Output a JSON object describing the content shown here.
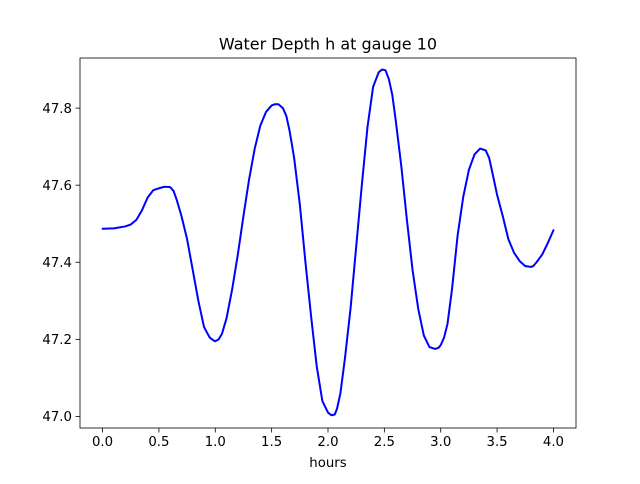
{
  "chart_data": {
    "type": "line",
    "title": "Water Depth h at gauge 10",
    "xlabel": "hours",
    "ylabel": "",
    "xlim": [
      -0.2,
      4.2
    ],
    "ylim": [
      46.97,
      47.93
    ],
    "xticks": [
      0.0,
      0.5,
      1.0,
      1.5,
      2.0,
      2.5,
      3.0,
      3.5,
      4.0
    ],
    "xtick_labels": [
      "0.0",
      "0.5",
      "1.0",
      "1.5",
      "2.0",
      "2.5",
      "3.0",
      "3.5",
      "4.0"
    ],
    "yticks": [
      47.0,
      47.2,
      47.4,
      47.6,
      47.8
    ],
    "ytick_labels": [
      "47.0",
      "47.2",
      "47.4",
      "47.6",
      "47.8"
    ],
    "grid": false,
    "series": [
      {
        "color": "#0000ff",
        "x": [
          0.0,
          0.1,
          0.2,
          0.25,
          0.3,
          0.35,
          0.4,
          0.45,
          0.5,
          0.55,
          0.6,
          0.63,
          0.66,
          0.7,
          0.75,
          0.8,
          0.85,
          0.9,
          0.95,
          0.98,
          1.0,
          1.03,
          1.06,
          1.1,
          1.15,
          1.2,
          1.25,
          1.3,
          1.35,
          1.4,
          1.45,
          1.5,
          1.53,
          1.56,
          1.6,
          1.63,
          1.66,
          1.7,
          1.75,
          1.8,
          1.85,
          1.9,
          1.95,
          2.0,
          2.03,
          2.06,
          2.08,
          2.11,
          2.15,
          2.2,
          2.25,
          2.3,
          2.35,
          2.4,
          2.45,
          2.48,
          2.51,
          2.54,
          2.57,
          2.6,
          2.65,
          2.7,
          2.75,
          2.8,
          2.85,
          2.9,
          2.95,
          2.98,
          3.0,
          3.03,
          3.06,
          3.1,
          3.15,
          3.2,
          3.25,
          3.3,
          3.35,
          3.4,
          3.43,
          3.46,
          3.5,
          3.55,
          3.6,
          3.65,
          3.7,
          3.75,
          3.8,
          3.82,
          3.85,
          3.9,
          3.95,
          4.0
        ],
        "y": [
          47.487,
          47.488,
          47.493,
          47.498,
          47.51,
          47.535,
          47.568,
          47.587,
          47.592,
          47.596,
          47.595,
          47.585,
          47.56,
          47.52,
          47.46,
          47.38,
          47.3,
          47.232,
          47.205,
          47.198,
          47.195,
          47.2,
          47.215,
          47.255,
          47.33,
          47.42,
          47.52,
          47.615,
          47.695,
          47.755,
          47.79,
          47.807,
          47.81,
          47.81,
          47.8,
          47.78,
          47.74,
          47.67,
          47.55,
          47.4,
          47.26,
          47.13,
          47.04,
          47.01,
          47.003,
          47.005,
          47.02,
          47.06,
          47.15,
          47.28,
          47.44,
          47.6,
          47.75,
          47.855,
          47.893,
          47.9,
          47.898,
          47.875,
          47.835,
          47.77,
          47.65,
          47.51,
          47.38,
          47.28,
          47.21,
          47.18,
          47.175,
          47.178,
          47.185,
          47.205,
          47.24,
          47.33,
          47.47,
          47.57,
          47.64,
          47.68,
          47.695,
          47.69,
          47.67,
          47.63,
          47.575,
          47.52,
          47.46,
          47.425,
          47.403,
          47.39,
          47.388,
          47.39,
          47.4,
          47.42,
          47.45,
          47.483
        ]
      }
    ]
  }
}
